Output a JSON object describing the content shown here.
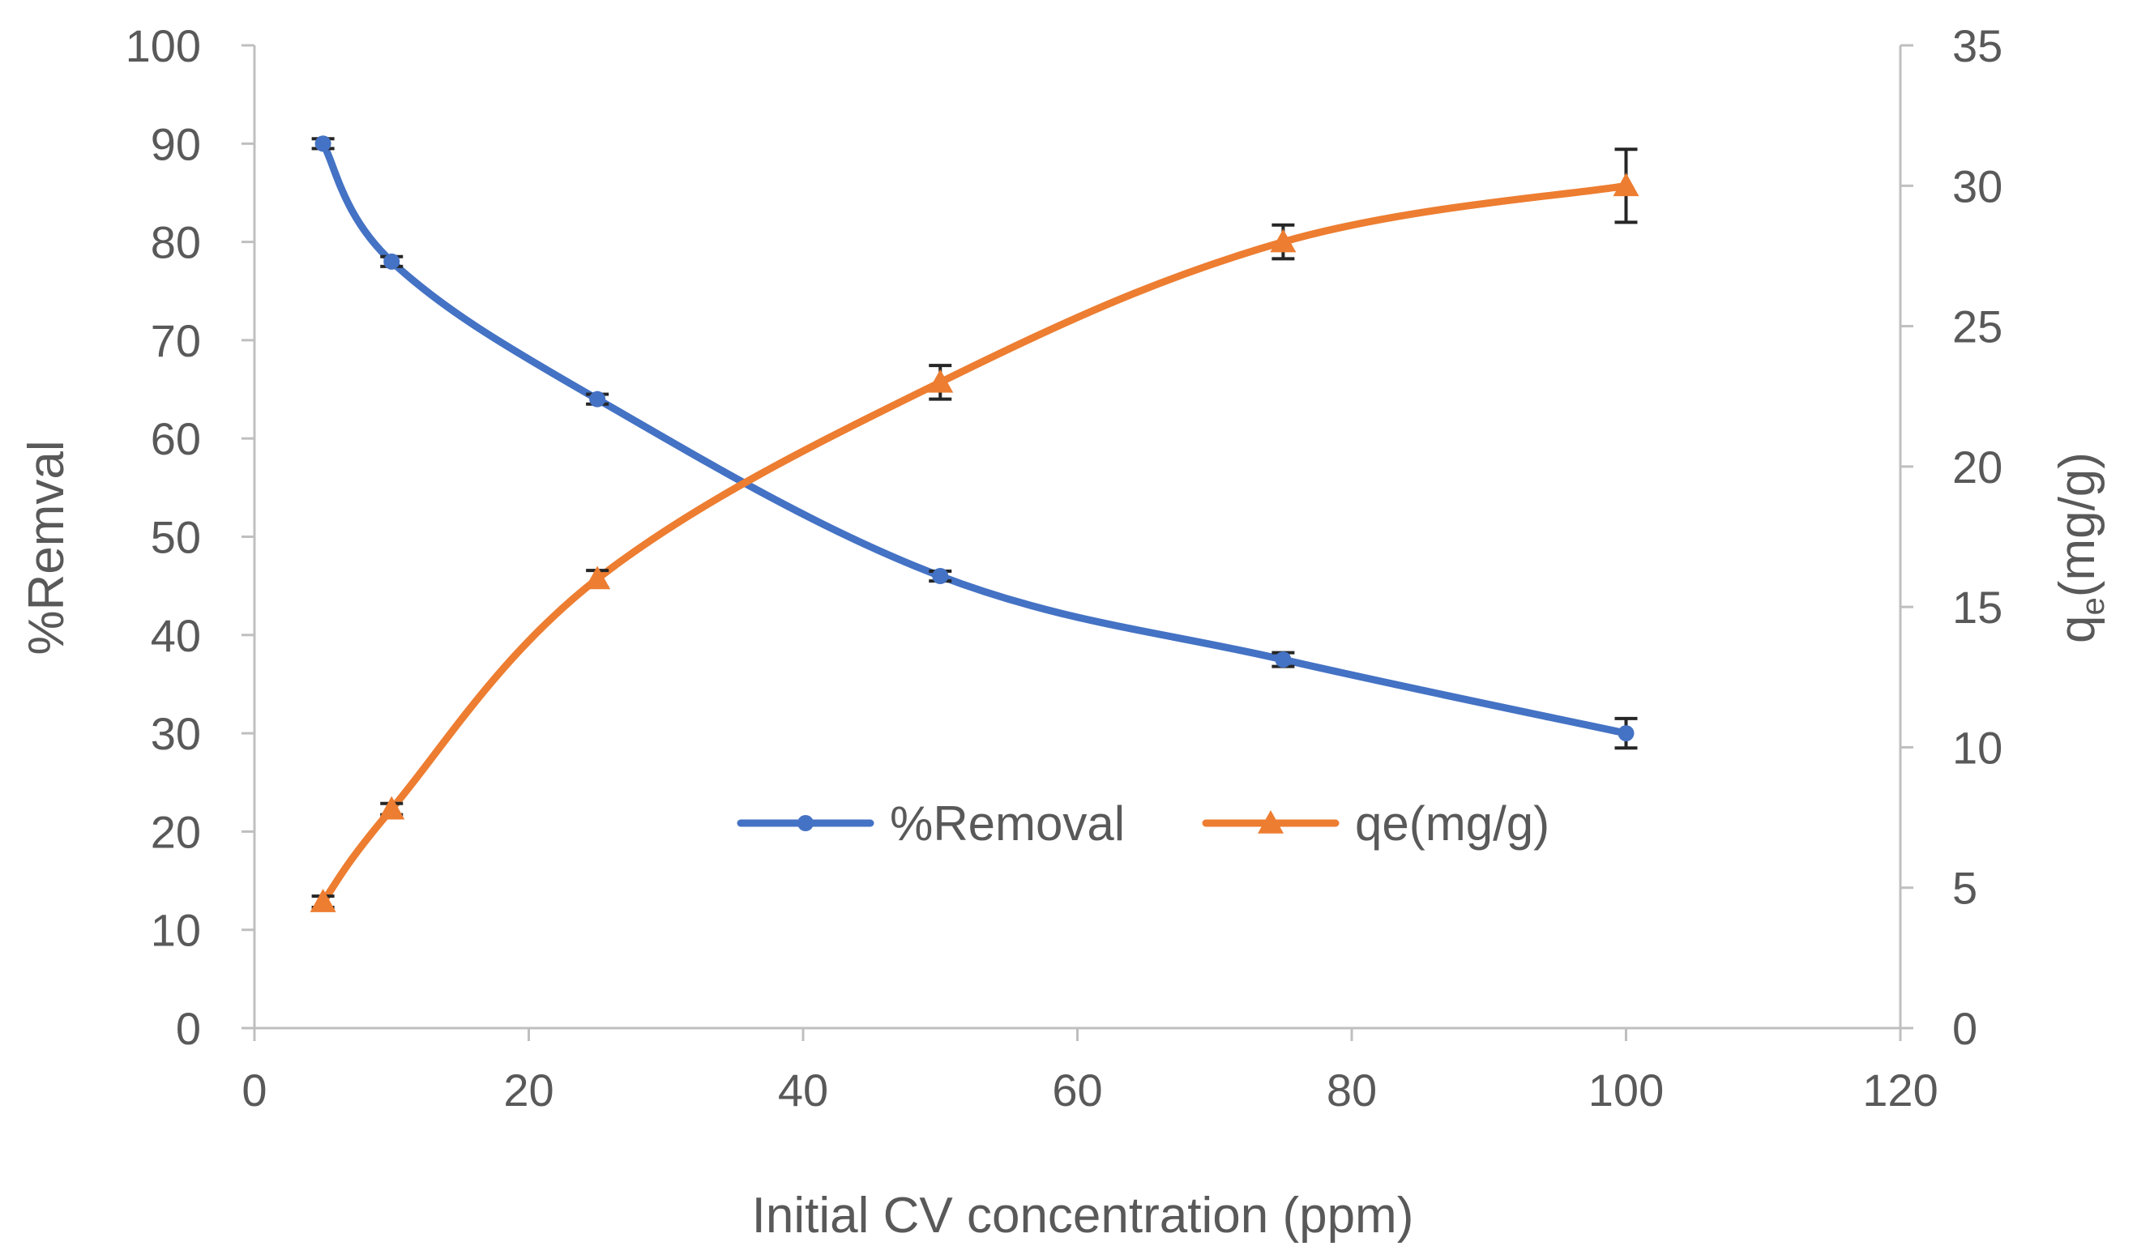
{
  "chart_data": {
    "type": "line",
    "xlabel": "Initial CV concentration (ppm)",
    "ylabel_left": "%Remval",
    "ylabel_right": {
      "main": "q",
      "sub": "e",
      "rest": "(mg/g)"
    },
    "xlim": [
      0,
      120
    ],
    "ylim_left": [
      0,
      100
    ],
    "ylim_right": [
      0,
      35
    ],
    "x_ticks": [
      "0",
      "20",
      "40",
      "60",
      "80",
      "100",
      "120"
    ],
    "y_left_ticks": [
      "0",
      "10",
      "20",
      "30",
      "40",
      "50",
      "60",
      "70",
      "80",
      "90",
      "100"
    ],
    "y_right_ticks": [
      "0",
      "5",
      "10",
      "15",
      "20",
      "25",
      "30",
      "35"
    ],
    "grid": false,
    "legend_position": "center",
    "series": [
      {
        "name": "%Removal",
        "axis": "left",
        "color": "#4472C4",
        "marker": "circle",
        "x": [
          5,
          10,
          25,
          50,
          75,
          100
        ],
        "values": [
          90,
          78,
          64,
          46,
          37.5,
          30
        ],
        "errors": [
          0.5,
          0.5,
          0.5,
          0.5,
          0.7,
          1.5
        ]
      },
      {
        "name": "qe(mg/g)",
        "axis": "right",
        "color": "#ED7D31",
        "marker": "triangle",
        "x": [
          5,
          10,
          25,
          50,
          75,
          100
        ],
        "values": [
          4.5,
          7.8,
          16,
          23,
          28,
          30
        ],
        "errors": [
          0.2,
          0.2,
          0.3,
          0.6,
          0.6,
          1.3
        ]
      }
    ]
  }
}
